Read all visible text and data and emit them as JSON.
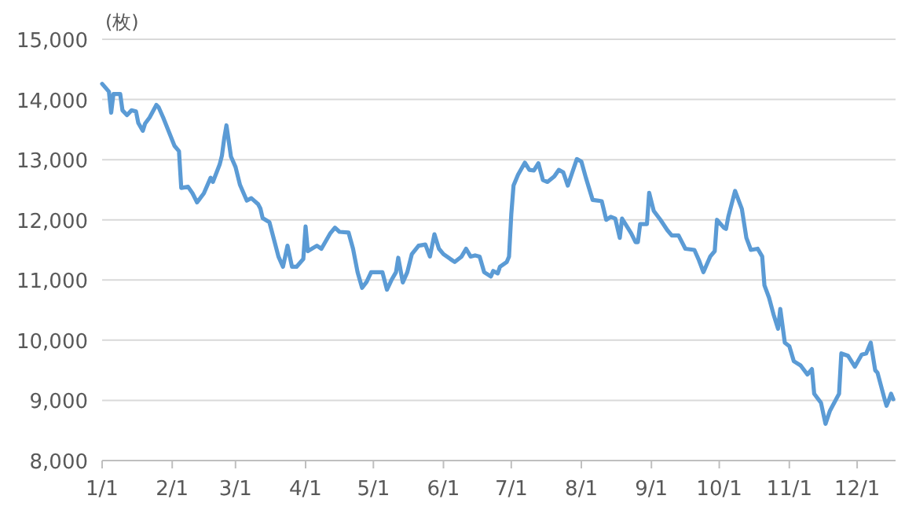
{
  "chart_data": {
    "type": "line",
    "ylabel": "(枚)",
    "xlim": [
      "--01-01",
      "--12-18"
    ],
    "ylim": [
      8000,
      15000
    ],
    "xticks": [
      {
        "value": "--01-01",
        "label": "1/1"
      },
      {
        "value": "--02-01",
        "label": "2/1"
      },
      {
        "value": "--03-01",
        "label": "3/1"
      },
      {
        "value": "--04-01",
        "label": "4/1"
      },
      {
        "value": "--05-01",
        "label": "5/1"
      },
      {
        "value": "--06-01",
        "label": "6/1"
      },
      {
        "value": "--07-01",
        "label": "7/1"
      },
      {
        "value": "--08-01",
        "label": "8/1"
      },
      {
        "value": "--09-01",
        "label": "9/1"
      },
      {
        "value": "--10-01",
        "label": "10/1"
      },
      {
        "value": "--11-01",
        "label": "11/1"
      },
      {
        "value": "--12-01",
        "label": "12/1"
      }
    ],
    "yticks": [
      {
        "value": 8000,
        "label": "8,000"
      },
      {
        "value": 9000,
        "label": "9,000"
      },
      {
        "value": 10000,
        "label": "10,000"
      },
      {
        "value": 11000,
        "label": "11,000"
      },
      {
        "value": 12000,
        "label": "12,000"
      },
      {
        "value": 13000,
        "label": "13,000"
      },
      {
        "value": 14000,
        "label": "14,000"
      },
      {
        "value": 15000,
        "label": "15,000"
      }
    ],
    "grid": "y",
    "series": [
      {
        "color": "#5b9bd5",
        "x": [
          "--01-01",
          "--01-04",
          "--01-05",
          "--01-06",
          "--01-09",
          "--01-10",
          "--01-12",
          "--01-14",
          "--01-16",
          "--01-17",
          "--01-19",
          "--01-20",
          "--01-22",
          "--01-25",
          "--01-26",
          "--01-28",
          "--02-02",
          "--02-04",
          "--02-05",
          "--02-08",
          "--02-10",
          "--02-12",
          "--02-15",
          "--02-18",
          "--02-19",
          "--02-22",
          "--02-23",
          "--02-24",
          "--02-25",
          "--02-27",
          "--03-01",
          "--03-03",
          "--03-06",
          "--03-08",
          "--03-11",
          "--03-12",
          "--03-13",
          "--03-16",
          "--03-20",
          "--03-22",
          "--03-24",
          "--03-26",
          "--03-28",
          "--03-31",
          "--04-01",
          "--04-02",
          "--04-06",
          "--04-08",
          "--04-12",
          "--04-14",
          "--04-16",
          "--04-20",
          "--04-22",
          "--04-24",
          "--04-26",
          "--04-28",
          "--04-30",
          "--05-05",
          "--05-07",
          "--05-09",
          "--05-11",
          "--05-12",
          "--05-14",
          "--05-16",
          "--05-18",
          "--05-21",
          "--05-24",
          "--05-26",
          "--05-28",
          "--05-30",
          "--06-01",
          "--06-04",
          "--06-06",
          "--06-09",
          "--06-11",
          "--06-13",
          "--06-15",
          "--06-17",
          "--06-19",
          "--06-22",
          "--06-23",
          "--06-25",
          "--06-26",
          "--06-29",
          "--06-30",
          "--07-01",
          "--07-02",
          "--07-04",
          "--07-07",
          "--07-09",
          "--07-11",
          "--07-13",
          "--07-15",
          "--07-17",
          "--07-20",
          "--07-22",
          "--07-24",
          "--07-26",
          "--07-28",
          "--07-30",
          "--08-01",
          "--08-03",
          "--08-06",
          "--08-10",
          "--08-12",
          "--08-14",
          "--08-16",
          "--08-18",
          "--08-19",
          "--08-23",
          "--08-25",
          "--08-26",
          "--08-27",
          "--08-30",
          "--08-31",
          "--09-02",
          "--09-05",
          "--09-08",
          "--09-10",
          "--09-13",
          "--09-16",
          "--09-20",
          "--09-22",
          "--09-24",
          "--09-27",
          "--09-29",
          "--09-30",
          "--10-03",
          "--10-04",
          "--10-05",
          "--10-08",
          "--10-11",
          "--10-13",
          "--10-15",
          "--10-18",
          "--10-20",
          "--10-21",
          "--10-23",
          "--10-25",
          "--10-27",
          "--10-28",
          "--10-30",
          "--11-01",
          "--11-03",
          "--11-06",
          "--11-09",
          "--11-11",
          "--11-12",
          "--11-15",
          "--11-17",
          "--11-19",
          "--11-23",
          "--11-24",
          "--11-27",
          "--11-30",
          "--12-03",
          "--12-05",
          "--12-07",
          "--12-09",
          "--12-10",
          "--12-13",
          "--12-14",
          "--12-15",
          "--12-16",
          "--12-17"
        ],
        "values": [
          14260,
          14130,
          13780,
          14090,
          14090,
          13820,
          13740,
          13820,
          13800,
          13610,
          13480,
          13600,
          13700,
          13910,
          13870,
          13700,
          13230,
          13140,
          12530,
          12550,
          12440,
          12290,
          12440,
          12700,
          12630,
          12920,
          13070,
          13350,
          13570,
          13050,
          12880,
          12580,
          12320,
          12360,
          12260,
          12190,
          12030,
          11960,
          11390,
          11220,
          11570,
          11220,
          11220,
          11350,
          11890,
          11480,
          11570,
          11520,
          11780,
          11870,
          11800,
          11790,
          11520,
          11130,
          10870,
          10970,
          11130,
          11130,
          10840,
          11000,
          11130,
          11370,
          10960,
          11130,
          11430,
          11570,
          11590,
          11390,
          11760,
          11520,
          11430,
          11350,
          11300,
          11390,
          11520,
          11390,
          11410,
          11390,
          11130,
          11060,
          11150,
          11110,
          11220,
          11300,
          11390,
          12090,
          12570,
          12750,
          12950,
          12830,
          12820,
          12940,
          12660,
          12630,
          12720,
          12830,
          12790,
          12570,
          12790,
          13010,
          12970,
          12700,
          12330,
          12310,
          12000,
          12050,
          12020,
          11700,
          12020,
          11780,
          11630,
          11630,
          11930,
          11930,
          12450,
          12150,
          12000,
          11830,
          11740,
          11740,
          11520,
          11500,
          11330,
          11130,
          11390,
          11480,
          12000,
          11870,
          11850,
          12050,
          12480,
          12180,
          11700,
          11500,
          11520,
          11390,
          10910,
          10710,
          10430,
          10190,
          10520,
          9960,
          9900,
          9650,
          9580,
          9430,
          9520,
          9110,
          8960,
          8610,
          8830,
          9110,
          9780,
          9740,
          9560,
          9760,
          9780,
          9960,
          9500,
          9460,
          9040,
          8910,
          9000,
          9110,
          9020
        ]
      }
    ]
  }
}
